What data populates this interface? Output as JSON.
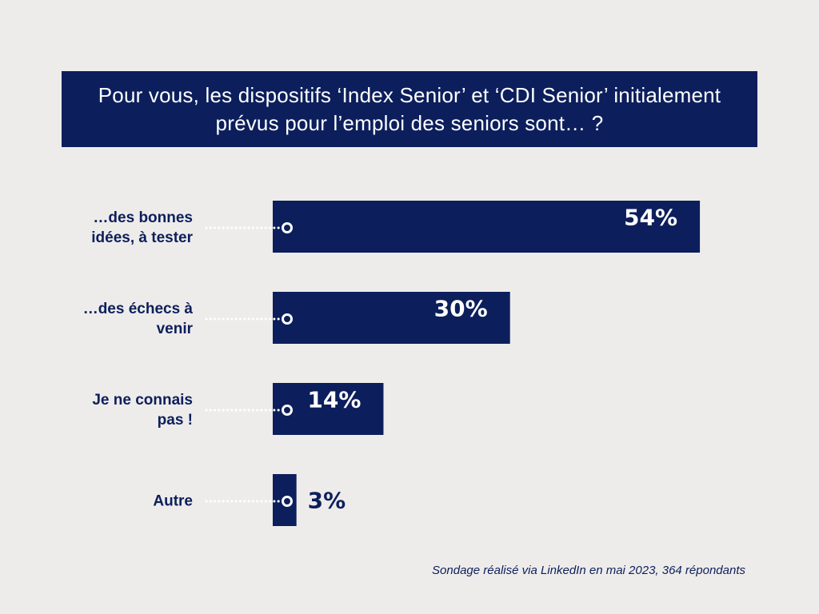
{
  "colors": {
    "navy": "#0c1f5c",
    "background": "#eeecea",
    "white": "#ffffff"
  },
  "chart_data": {
    "type": "bar",
    "orientation": "horizontal",
    "title": "Pour vous, les dispositifs ‘Index Senior’ et ‘CDI Senior’ initialement prévus pour l’emploi des seniors sont… ?",
    "categories": [
      [
        "…des bonnes",
        "idées, à tester"
      ],
      [
        "…des échecs à",
        "venir"
      ],
      [
        "Je ne connais",
        "pas !"
      ],
      [
        "Autre"
      ]
    ],
    "values": [
      54,
      30,
      14,
      3
    ],
    "value_labels": [
      "54%",
      "30%",
      "14%",
      "3%"
    ],
    "unit": "%",
    "grid": false,
    "legend": "none"
  },
  "footer": {
    "source": "Sondage réalisé via LinkedIn en mai 2023, 364 répondants"
  }
}
